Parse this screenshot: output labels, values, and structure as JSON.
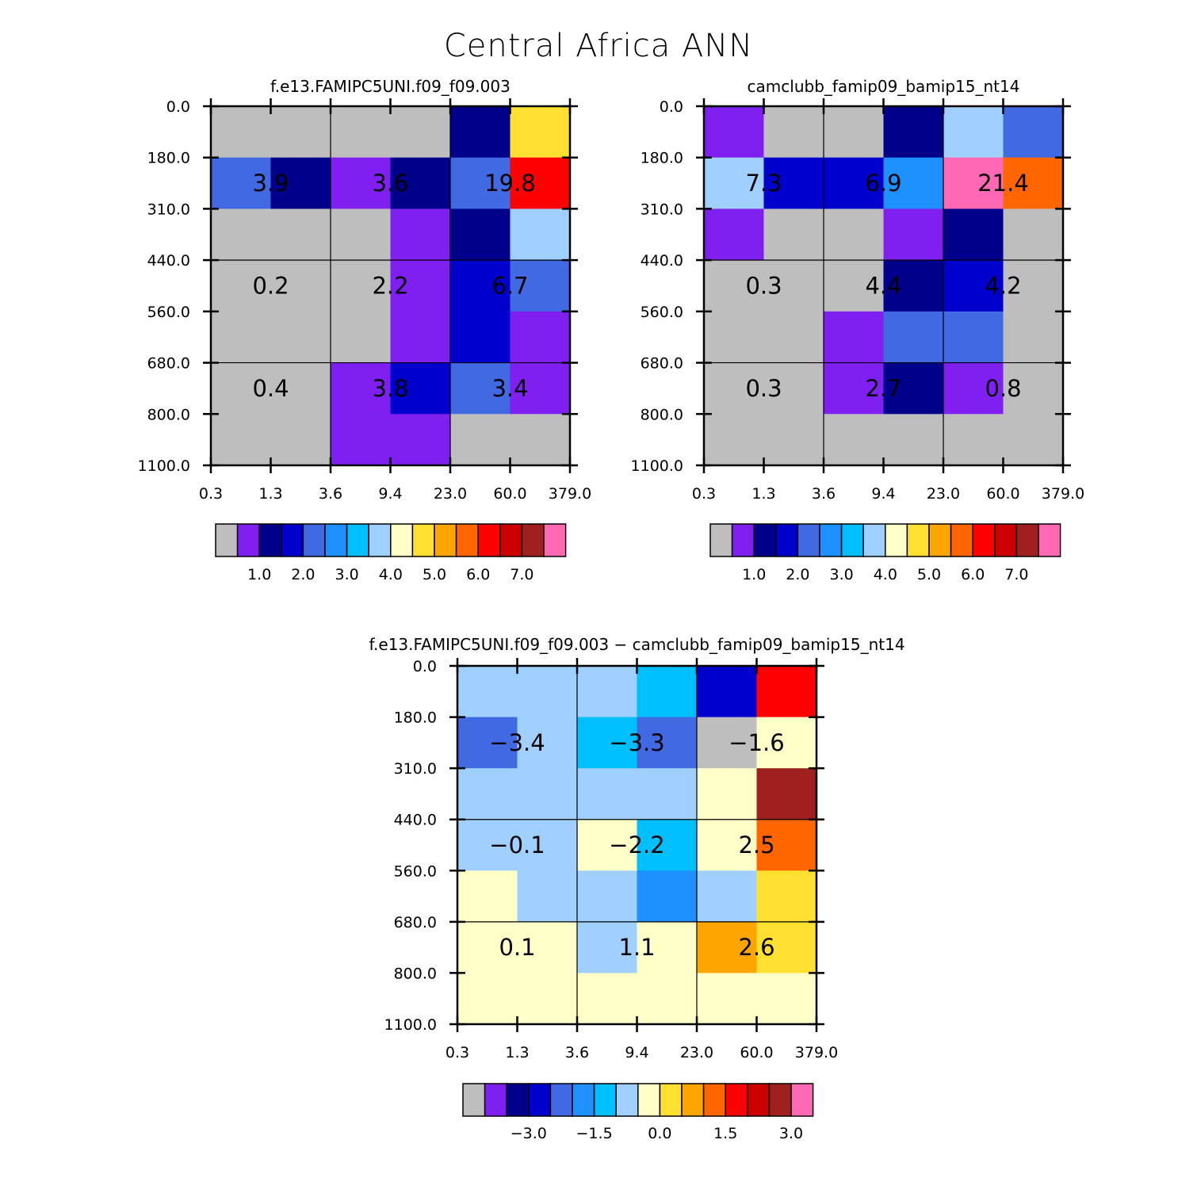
{
  "title": "Central Africa ANN",
  "colors": {
    "palette": [
      "#bebebe",
      "#8020f0",
      "#00008b",
      "#0000cd",
      "#4169e1",
      "#1e90ff",
      "#00bfff",
      "#a0d0ff",
      "#ffffc8",
      "#ffe030",
      "#ffa500",
      "#ff6600",
      "#ff0000",
      "#cd0000",
      "#a02020",
      "#ff69b4"
    ],
    "grid": "#000000",
    "text": "#000000"
  },
  "chart_data": [
    {
      "type": "heatmap",
      "title": "f.e13.FAMIPC5UNI.f09_f09.003",
      "x_ticks": [
        "0.3",
        "1.3",
        "3.6",
        "9.4",
        "23.0",
        "60.0",
        "379.0"
      ],
      "y_ticks": [
        "0.0",
        "180.0",
        "310.0",
        "440.0",
        "560.0",
        "680.0",
        "800.0",
        "1100.0"
      ],
      "cells": [
        [
          0,
          0,
          0,
          0,
          2,
          9
        ],
        [
          4,
          2,
          1,
          2,
          4,
          12
        ],
        [
          0,
          0,
          0,
          1,
          2,
          7
        ],
        [
          0,
          0,
          0,
          1,
          3,
          4
        ],
        [
          0,
          0,
          0,
          1,
          3,
          1
        ],
        [
          0,
          0,
          1,
          3,
          4,
          1
        ],
        [
          0,
          0,
          1,
          1,
          0,
          0
        ]
      ],
      "labels": [
        [
          "3.9",
          "3.6",
          "19.8"
        ],
        [
          "0.2",
          "2.2",
          "6.7"
        ],
        [
          "0.4",
          "3.8",
          "3.4"
        ]
      ],
      "colorbar": {
        "labels": [
          "1.0",
          "2.0",
          "3.0",
          "4.0",
          "5.0",
          "6.0",
          "7.0"
        ]
      }
    },
    {
      "type": "heatmap",
      "title": "camclubb_famip09_bamip15_nt14",
      "x_ticks": [
        "0.3",
        "1.3",
        "3.6",
        "9.4",
        "23.0",
        "60.0",
        "379.0"
      ],
      "y_ticks": [
        "0.0",
        "180.0",
        "310.0",
        "440.0",
        "560.0",
        "680.0",
        "800.0",
        "1100.0"
      ],
      "cells": [
        [
          1,
          0,
          0,
          2,
          7,
          4
        ],
        [
          7,
          3,
          3,
          5,
          15,
          11
        ],
        [
          1,
          0,
          0,
          1,
          2,
          0
        ],
        [
          0,
          0,
          0,
          2,
          3,
          0
        ],
        [
          0,
          0,
          1,
          4,
          4,
          0
        ],
        [
          0,
          0,
          1,
          2,
          1,
          0
        ],
        [
          0,
          0,
          0,
          0,
          0,
          0
        ]
      ],
      "labels": [
        [
          "7.3",
          "6.9",
          "21.4"
        ],
        [
          "0.3",
          "4.4",
          "4.2"
        ],
        [
          "0.3",
          "2.7",
          "0.8"
        ]
      ],
      "colorbar": {
        "labels": [
          "1.0",
          "2.0",
          "3.0",
          "4.0",
          "5.0",
          "6.0",
          "7.0"
        ]
      }
    },
    {
      "type": "heatmap",
      "title": "f.e13.FAMIPC5UNI.f09_f09.003 − camclubb_famip09_bamip15_nt14",
      "x_ticks": [
        "0.3",
        "1.3",
        "3.6",
        "9.4",
        "23.0",
        "60.0",
        "379.0"
      ],
      "y_ticks": [
        "0.0",
        "180.0",
        "310.0",
        "440.0",
        "560.0",
        "680.0",
        "800.0",
        "1100.0"
      ],
      "cells": [
        [
          7,
          7,
          7,
          6,
          3,
          12
        ],
        [
          4,
          7,
          6,
          4,
          0,
          8
        ],
        [
          7,
          7,
          7,
          7,
          8,
          14
        ],
        [
          7,
          7,
          8,
          6,
          8,
          11
        ],
        [
          8,
          7,
          7,
          5,
          7,
          9
        ],
        [
          8,
          8,
          7,
          8,
          10,
          9
        ],
        [
          8,
          8,
          8,
          8,
          8,
          8
        ]
      ],
      "labels": [
        [
          "−3.4",
          "−3.3",
          "−1.6"
        ],
        [
          "−0.1",
          "−2.2",
          "2.5"
        ],
        [
          "0.1",
          "1.1",
          "2.6"
        ]
      ],
      "colorbar": {
        "labels": [
          "−3.0",
          "−1.5",
          "0.0",
          "1.5",
          "3.0"
        ]
      }
    }
  ]
}
